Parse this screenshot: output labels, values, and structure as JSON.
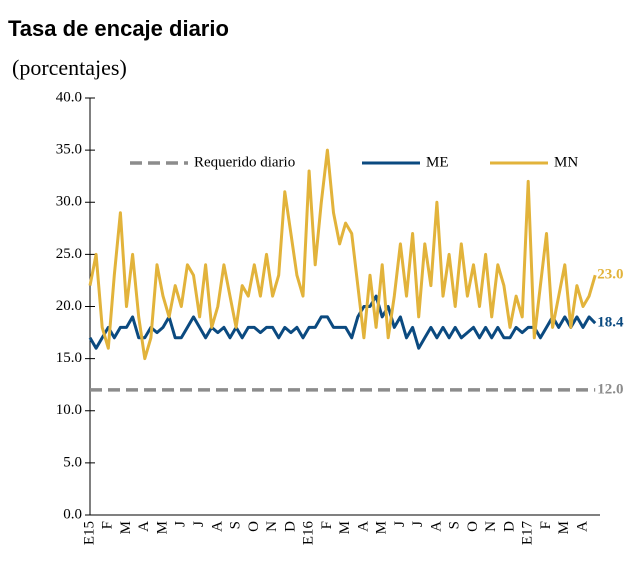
{
  "chart_data": {
    "type": "line",
    "title": "Tasa de encaje diario",
    "subtitle": "(porcentajes)",
    "categories": [
      "E15",
      null,
      null,
      "F",
      null,
      null,
      "M",
      null,
      null,
      "A",
      null,
      null,
      "M",
      null,
      null,
      "J",
      null,
      null,
      "J",
      null,
      null,
      "A",
      null,
      null,
      "S",
      null,
      null,
      "O",
      null,
      null,
      "N",
      null,
      null,
      "D",
      null,
      null,
      "E16",
      null,
      null,
      "F",
      null,
      null,
      "M",
      null,
      null,
      "A",
      null,
      null,
      "M",
      null,
      null,
      "J",
      null,
      null,
      "J",
      null,
      null,
      "A",
      null,
      null,
      "S",
      null,
      null,
      "O",
      null,
      null,
      "N",
      null,
      null,
      "D",
      null,
      null,
      "E17",
      null,
      null,
      "F",
      null,
      null,
      "M",
      null,
      null,
      "A",
      null,
      null
    ],
    "ylim": [
      0,
      40
    ],
    "yticks": [
      {
        "value": 0,
        "label": "0.0"
      },
      {
        "value": 5,
        "label": "5.0"
      },
      {
        "value": 10,
        "label": "10.0"
      },
      {
        "value": 15,
        "label": "15.0"
      },
      {
        "value": 20,
        "label": "20.0"
      },
      {
        "value": 25,
        "label": "25.0"
      },
      {
        "value": 30,
        "label": "30.0"
      },
      {
        "value": 35,
        "label": "35.0"
      },
      {
        "value": 40,
        "label": "40.0"
      }
    ],
    "grid": false,
    "legend": "top",
    "series": [
      {
        "name": "Requerido diario",
        "color": "#8c8c8c",
        "dashed": true,
        "values": [
          12,
          12,
          12,
          12,
          12,
          12,
          12,
          12,
          12,
          12,
          12,
          12,
          12,
          12,
          12,
          12,
          12,
          12,
          12,
          12,
          12,
          12,
          12,
          12,
          12,
          12,
          12,
          12,
          12,
          12,
          12,
          12,
          12,
          12,
          12,
          12,
          12,
          12,
          12,
          12,
          12,
          12,
          12,
          12,
          12,
          12,
          12,
          12,
          12,
          12,
          12,
          12,
          12,
          12,
          12,
          12,
          12,
          12,
          12,
          12,
          12,
          12,
          12,
          12,
          12,
          12,
          12,
          12,
          12,
          12,
          12,
          12,
          12,
          12,
          12,
          12,
          12,
          12,
          12,
          12,
          12,
          12,
          12,
          12
        ],
        "value_labels": [
          null,
          null,
          null,
          null,
          null,
          null,
          null,
          null,
          null,
          null,
          null,
          null,
          null,
          null,
          null,
          null,
          null,
          null,
          null,
          null,
          null,
          null,
          null,
          null,
          null,
          null,
          null,
          null,
          null,
          null,
          null,
          null,
          null,
          null,
          null,
          null,
          null,
          null,
          null,
          null,
          null,
          null,
          null,
          null,
          null,
          null,
          null,
          null,
          null,
          null,
          null,
          null,
          null,
          null,
          null,
          null,
          null,
          null,
          null,
          null,
          null,
          null,
          null,
          null,
          null,
          null,
          null,
          null,
          null,
          null,
          null,
          null,
          null,
          null,
          null,
          null,
          null,
          null,
          null,
          null,
          null,
          null,
          null,
          "12.0"
        ]
      },
      {
        "name": "ME",
        "color": "#0b4a80",
        "values": [
          17,
          16,
          17,
          18,
          17,
          18,
          18,
          19,
          17,
          17,
          18,
          17.5,
          18,
          19,
          17,
          17,
          18,
          19,
          18,
          17,
          18,
          17.5,
          18,
          17,
          18,
          17,
          18,
          18,
          17.5,
          18,
          18,
          17,
          18,
          17.5,
          18,
          17,
          18,
          18,
          19,
          19,
          18,
          18,
          18,
          17,
          19,
          20,
          20,
          21,
          19,
          20,
          18,
          19,
          17,
          18,
          16,
          17,
          18,
          17,
          18,
          17,
          18,
          17,
          17.5,
          18,
          17,
          18,
          17,
          18,
          17,
          17,
          18,
          17.5,
          18,
          18,
          17,
          18,
          19,
          18,
          19,
          18,
          19,
          18,
          19,
          18.4
        ],
        "value_labels": [
          null,
          null,
          null,
          null,
          null,
          null,
          null,
          null,
          null,
          null,
          null,
          null,
          null,
          null,
          null,
          null,
          null,
          null,
          null,
          null,
          null,
          null,
          null,
          null,
          null,
          null,
          null,
          null,
          null,
          null,
          null,
          null,
          null,
          null,
          null,
          null,
          null,
          null,
          null,
          null,
          null,
          null,
          null,
          null,
          null,
          null,
          null,
          null,
          null,
          null,
          null,
          null,
          null,
          null,
          null,
          null,
          null,
          null,
          null,
          null,
          null,
          null,
          null,
          null,
          null,
          null,
          null,
          null,
          null,
          null,
          null,
          null,
          null,
          null,
          null,
          null,
          null,
          null,
          null,
          null,
          null,
          null,
          null,
          "18.4"
        ]
      },
      {
        "name": "MN",
        "color": "#e2b33b",
        "values": [
          22,
          25,
          18,
          16,
          23,
          29,
          20,
          25,
          19,
          15,
          17,
          24,
          21,
          19,
          22,
          20,
          24,
          23,
          19,
          24,
          18,
          20,
          24,
          21,
          18,
          22,
          21,
          24,
          21,
          25,
          21,
          23,
          31,
          27,
          23,
          21,
          33,
          24,
          30,
          35,
          29,
          26,
          28,
          27,
          22,
          17,
          23,
          18,
          24,
          17,
          21,
          26,
          21,
          27,
          19,
          26,
          22,
          30,
          21,
          25,
          20,
          26,
          21,
          24,
          20,
          25,
          19,
          24,
          22,
          18,
          21,
          19,
          32,
          17,
          22,
          27,
          18,
          21,
          24,
          18,
          22,
          20,
          21,
          23
        ],
        "value_labels": [
          null,
          null,
          null,
          null,
          null,
          null,
          null,
          null,
          null,
          null,
          null,
          null,
          null,
          null,
          null,
          null,
          null,
          null,
          null,
          null,
          null,
          null,
          null,
          null,
          null,
          null,
          null,
          null,
          null,
          null,
          null,
          null,
          null,
          null,
          null,
          null,
          null,
          null,
          null,
          null,
          null,
          null,
          null,
          null,
          null,
          null,
          null,
          null,
          null,
          null,
          null,
          null,
          null,
          null,
          null,
          null,
          null,
          null,
          null,
          null,
          null,
          null,
          null,
          null,
          null,
          null,
          null,
          null,
          null,
          null,
          null,
          null,
          null,
          null,
          null,
          null,
          null,
          null,
          null,
          null,
          null,
          null,
          null,
          "23.0"
        ]
      }
    ]
  }
}
